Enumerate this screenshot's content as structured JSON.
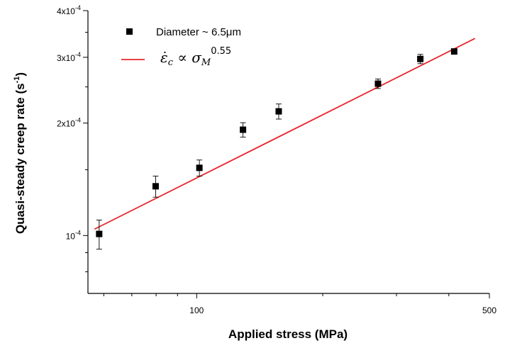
{
  "chart_data": {
    "type": "scatter",
    "x_scale": "log",
    "y_scale": "log",
    "xlim": [
      55,
      500
    ],
    "ylim": [
      7e-05,
      0.0004
    ],
    "xlabel": "Applied stress (MPa)",
    "ylabel": {
      "text": "Quasi-steady creep rate (s",
      "sup": "-1",
      "close": ")"
    },
    "x_ticks": [
      {
        "value": 100,
        "label": "100"
      },
      {
        "value": 500,
        "label": "500"
      }
    ],
    "y_ticks": [
      {
        "value": 0.0001,
        "mant": "10",
        "exp": "-4"
      },
      {
        "value": 0.0002,
        "mant": "2x10",
        "exp": "-4"
      },
      {
        "value": 0.0003,
        "mant": "3x10",
        "exp": "-4"
      },
      {
        "value": 0.0004,
        "mant": "4x10",
        "exp": "-4"
      }
    ],
    "series": [
      {
        "name": "Diameter ~ 6.5μm",
        "kind": "scatter",
        "color": "#000000",
        "marker": "square",
        "points": [
          {
            "x": 58.5,
            "y": 0.000101,
            "err": 9e-06
          },
          {
            "x": 79.8,
            "y": 0.0001355,
            "err": 8.8e-06
          },
          {
            "x": 101.5,
            "y": 0.0001518,
            "err": 7.5e-06
          },
          {
            "x": 129,
            "y": 0.000192,
            "err": 8.5e-06
          },
          {
            "x": 157,
            "y": 0.000215,
            "err": 1e-05
          },
          {
            "x": 271,
            "y": 0.000255,
            "err": 7.5e-06
          },
          {
            "x": 342,
            "y": 0.000297,
            "err": 8.5e-06
          },
          {
            "x": 412,
            "y": 0.000311,
            "err": 4.5e-06
          }
        ]
      },
      {
        "name": "fit",
        "kind": "line",
        "color": "#e8262b",
        "x": [
          57,
          462
        ],
        "y": [
          0.000104,
          0.000337
        ]
      }
    ],
    "legend": {
      "position": "top-left",
      "fit_label": {
        "base": "ε̇",
        "base_sub": "c",
        "prop": " ∝ σ",
        "sigma_sub": "M",
        "exponent": "0.55"
      }
    }
  }
}
